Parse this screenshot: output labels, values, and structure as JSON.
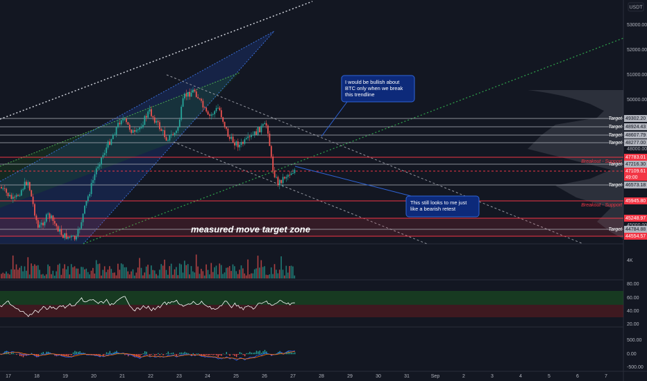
{
  "price_axis": {
    "currency": "USDT",
    "ticks": [
      "53000.00",
      "52000.00",
      "51000.00",
      "50000.00",
      "48000.00",
      "45000.00"
    ]
  },
  "price_labels": [
    {
      "text": "49302.20",
      "kind": "target"
    },
    {
      "text": "48924.43",
      "kind": "target"
    },
    {
      "text": "48607.79",
      "kind": "target"
    },
    {
      "text": "48277.00",
      "kind": "target"
    },
    {
      "text": "47783.01",
      "kind": "support"
    },
    {
      "text": "47216.30",
      "kind": "target"
    },
    {
      "text": "47109.61",
      "kind": "current"
    },
    {
      "text": "49:00",
      "kind": "current"
    },
    {
      "text": "46573.18",
      "kind": "target"
    },
    {
      "text": "45945.80",
      "kind": "support"
    },
    {
      "text": "45248.97",
      "kind": "support"
    },
    {
      "text": "44784.88",
      "kind": "target"
    },
    {
      "text": "44554.57",
      "kind": "support"
    }
  ],
  "target_text": "Target",
  "breakout_text": "Breakout - Support",
  "zone_label": "measured move target zone",
  "callouts": [
    {
      "lines": [
        "I would be bullish about",
        "BTC only when we break",
        "this trendline"
      ]
    },
    {
      "lines": [
        "This still looks to me just",
        "like a bearish retest"
      ]
    }
  ],
  "volume_axis": [
    "4K"
  ],
  "rsi_axis": [
    "80.00",
    "60.00",
    "40.00",
    "20.00"
  ],
  "macd_axis": [
    "500.00",
    "0.00",
    "-500.00"
  ],
  "date_axis": [
    "17",
    "18",
    "19",
    "20",
    "21",
    "22",
    "23",
    "24",
    "25",
    "26",
    "27",
    "28",
    "29",
    "30",
    "31",
    "Sep",
    "2",
    "3",
    "4",
    "5",
    "6",
    "7"
  ]
}
